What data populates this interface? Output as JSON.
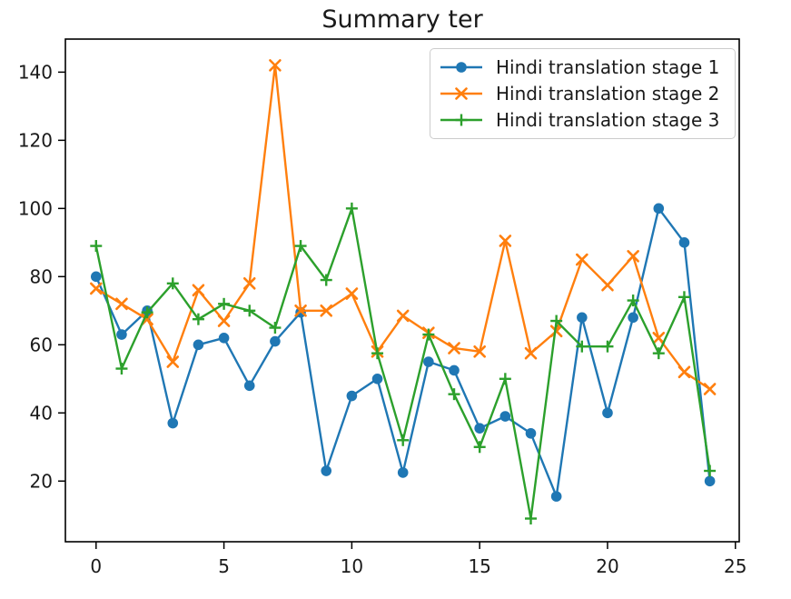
{
  "chart_data": {
    "type": "line",
    "title": "Summary ter",
    "x": [
      0,
      1,
      2,
      3,
      4,
      5,
      6,
      7,
      8,
      9,
      10,
      11,
      12,
      13,
      14,
      15,
      16,
      17,
      18,
      19,
      20,
      21,
      22,
      23,
      24
    ],
    "x_ticks": [
      0,
      5,
      10,
      15,
      20,
      25
    ],
    "y_ticks": [
      20,
      40,
      60,
      80,
      100,
      120,
      140
    ],
    "xlim": [
      -1.2,
      25.15
    ],
    "ylim": [
      2.2,
      149.7
    ],
    "grid": false,
    "legend_position": "upper right",
    "xlabel": "",
    "ylabel": "",
    "series": [
      {
        "name": "Hindi translation stage 1",
        "color": "#1f77b4",
        "marker": "circle",
        "values": [
          80,
          63,
          70,
          37,
          60,
          62,
          48,
          61,
          69.5,
          23,
          45,
          50,
          22.5,
          55,
          52.5,
          35.5,
          39,
          34,
          15.5,
          68,
          40,
          68,
          100,
          90,
          20
        ]
      },
      {
        "name": "Hindi translation stage 2",
        "color": "#ff7f0e",
        "marker": "x",
        "values": [
          76.5,
          72,
          67.5,
          55,
          76,
          67,
          78,
          142,
          70,
          70,
          75,
          58,
          68.5,
          63.5,
          59,
          58,
          90.5,
          57.5,
          64,
          85,
          77.5,
          86,
          62,
          52,
          47
        ]
      },
      {
        "name": "Hindi translation stage 3",
        "color": "#2ca02c",
        "marker": "plus",
        "values": [
          89,
          53,
          69.5,
          78,
          67.5,
          72,
          70,
          65,
          89,
          79,
          100,
          57.5,
          32,
          63,
          45.5,
          30,
          50,
          9,
          67,
          59.5,
          59.5,
          73,
          57.5,
          74,
          23
        ]
      }
    ],
    "colors": {
      "spine": "#000000",
      "tick_text": "#1a1a1a",
      "legend_border": "#cccccc",
      "background": "#ffffff"
    }
  }
}
